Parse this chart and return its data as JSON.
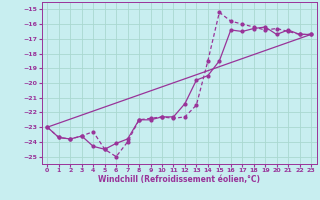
{
  "xlabel": "Windchill (Refroidissement éolien,°C)",
  "background_color": "#c8eef0",
  "grid_color": "#aad8d0",
  "line_color": "#993399",
  "xlim": [
    -0.5,
    23.5
  ],
  "ylim": [
    -25.5,
    -14.5
  ],
  "xticks": [
    0,
    1,
    2,
    3,
    4,
    5,
    6,
    7,
    8,
    9,
    10,
    11,
    12,
    13,
    14,
    15,
    16,
    17,
    18,
    19,
    20,
    21,
    22,
    23
  ],
  "yticks": [
    -25,
    -24,
    -23,
    -22,
    -21,
    -20,
    -19,
    -18,
    -17,
    -16,
    -15
  ],
  "series_dashed_x": [
    0,
    1,
    2,
    3,
    4,
    5,
    6,
    7,
    8,
    9,
    10,
    11,
    12,
    13,
    14,
    15,
    16,
    17,
    18,
    19,
    20,
    21,
    22,
    23
  ],
  "series_dashed_y": [
    -23.0,
    -23.7,
    -23.8,
    -23.6,
    -23.3,
    -24.5,
    -25.0,
    -24.0,
    -22.5,
    -22.4,
    -22.3,
    -22.4,
    -22.3,
    -21.5,
    -18.5,
    -15.2,
    -15.8,
    -16.0,
    -16.2,
    -16.4,
    -16.3,
    -16.5,
    -16.7,
    -16.7
  ],
  "series_solid_x": [
    0,
    1,
    2,
    3,
    4,
    5,
    6,
    7,
    8,
    9,
    10,
    11,
    12,
    13,
    14,
    15,
    16,
    17,
    18,
    19,
    20,
    21,
    22,
    23
  ],
  "series_solid_y": [
    -23.0,
    -23.7,
    -23.8,
    -23.6,
    -24.3,
    -24.5,
    -24.1,
    -23.8,
    -22.5,
    -22.5,
    -22.3,
    -22.3,
    -21.4,
    -19.8,
    -19.5,
    -18.5,
    -16.4,
    -16.5,
    -16.3,
    -16.2,
    -16.7,
    -16.4,
    -16.7,
    -16.7
  ],
  "series_line_x": [
    0,
    23
  ],
  "series_line_y": [
    -23.0,
    -16.7
  ]
}
